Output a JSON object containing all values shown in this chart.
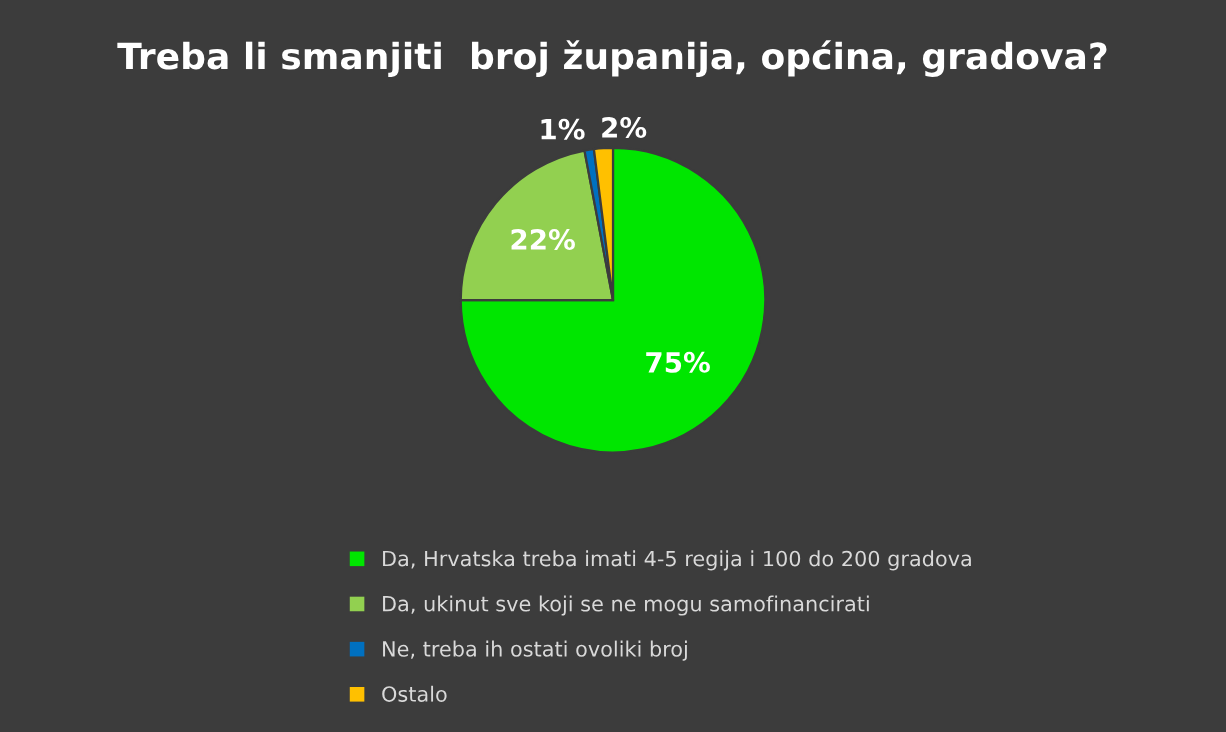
{
  "chart_data": {
    "type": "pie",
    "title": "Treba li smanjiti  broj županija, općina, gradova?",
    "categories": [
      "Da, Hrvatska treba imati 4-5 regija i 100 do 200 gradova",
      "Da, ukinut sve koji se ne mogu samofinancirati",
      "Ne, treba ih ostati ovoliki broj",
      "Ostalo"
    ],
    "values": [
      75,
      22,
      1,
      2
    ],
    "colors": [
      "#00e600",
      "#92d050",
      "#0070c0",
      "#ffc000"
    ],
    "value_labels": [
      "75%",
      "22%",
      "1%",
      "2%"
    ],
    "legend": "bottom"
  }
}
